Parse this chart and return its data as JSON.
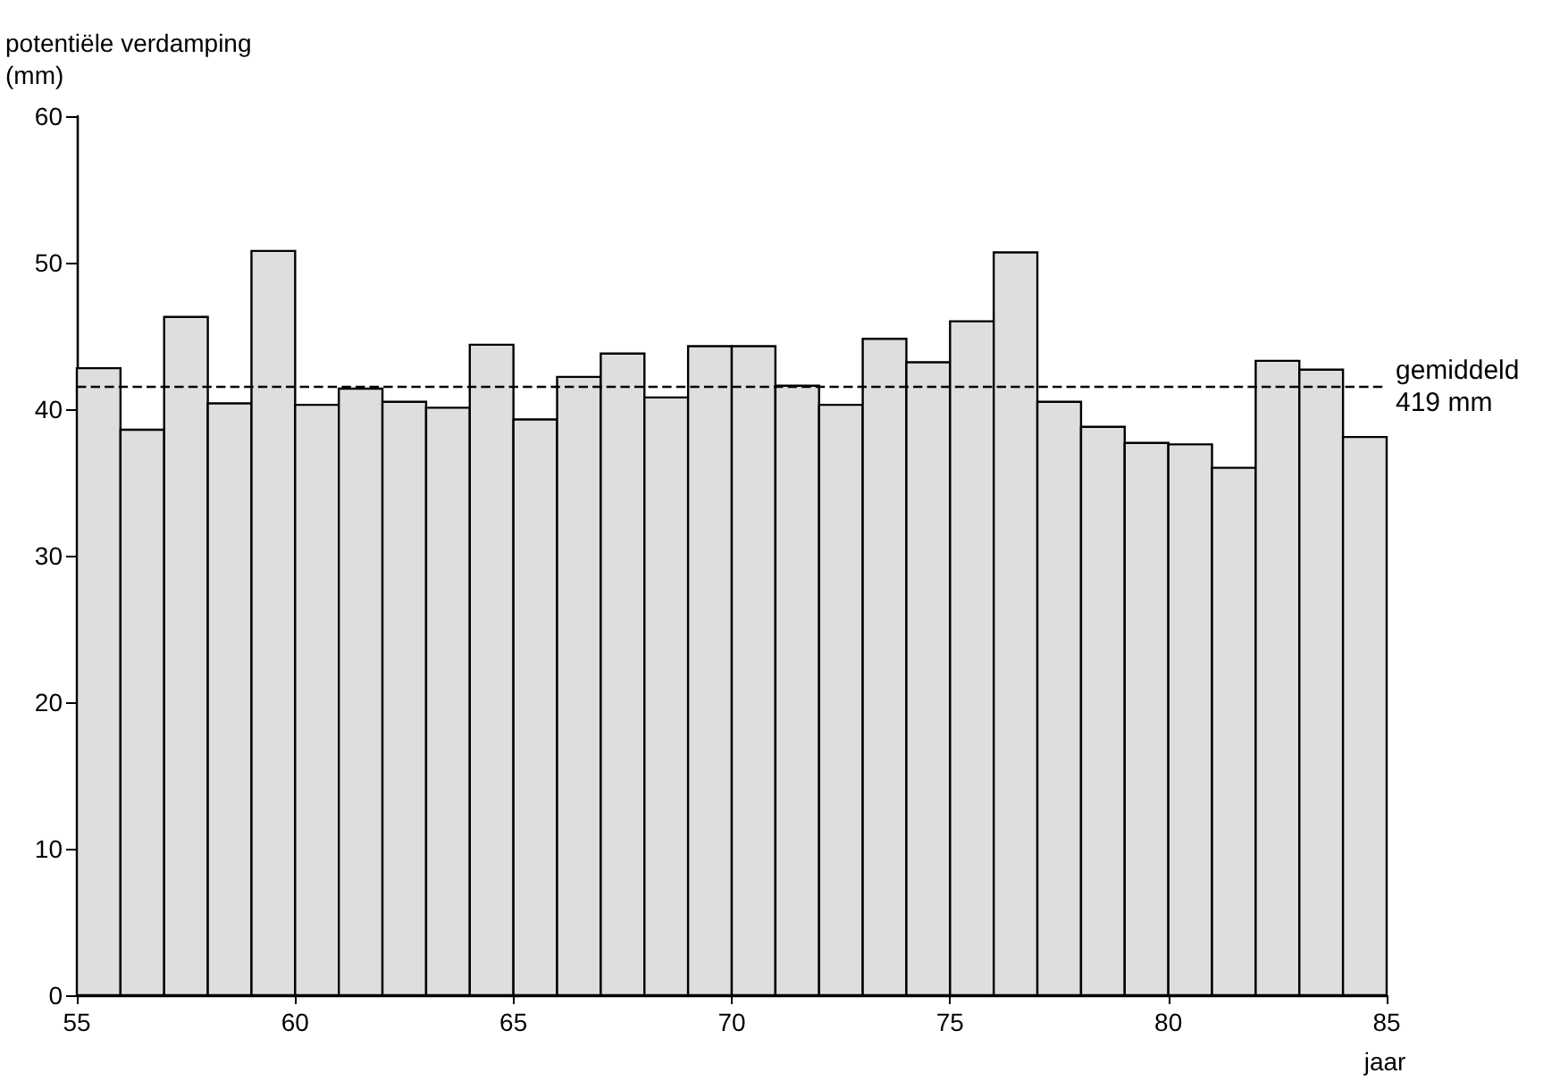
{
  "chart_data": {
    "type": "histogram",
    "ylabel": "potentiële verdamping\n(mm)",
    "xlabel": "jaar",
    "bins": [
      55,
      56,
      57,
      58,
      59,
      60,
      61,
      62,
      63,
      64,
      65,
      66,
      67,
      68,
      69,
      70,
      71,
      72,
      73,
      74,
      75,
      76,
      77,
      78,
      79,
      80,
      81,
      82,
      83,
      84,
      85
    ],
    "values": [
      42.8,
      38.6,
      46.3,
      40.4,
      50.8,
      40.3,
      41.4,
      40.5,
      40.1,
      44.4,
      39.3,
      42.2,
      43.8,
      40.8,
      44.3,
      44.3,
      41.6,
      40.3,
      44.8,
      43.2,
      46.0,
      50.7,
      40.5,
      38.8,
      37.7,
      37.6,
      36.0,
      43.3,
      42.7,
      38.1
    ],
    "color": "#dedede",
    "xlim": [
      55,
      85
    ],
    "xticks": [
      55,
      60,
      65,
      70,
      75,
      80,
      85
    ],
    "ylim": [
      0,
      60
    ],
    "yticks": [
      0,
      10,
      20,
      30,
      40,
      50,
      60
    ],
    "ref_lines": [
      {
        "axis": "y",
        "value": 41.5,
        "label": "gemiddeld\n419 mm",
        "color": "#000000",
        "line_style": "dashed"
      }
    ],
    "grid": false
  }
}
